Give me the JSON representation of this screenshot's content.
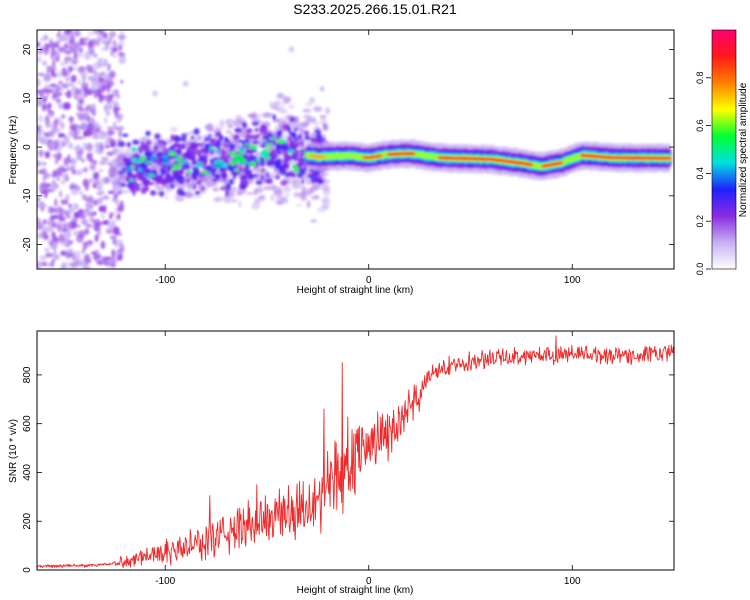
{
  "figure": {
    "title": "S233.2025.266.15.01.R21"
  },
  "chart_data": [
    {
      "type": "heatmap",
      "title": "S233.2025.266.15.01.R21",
      "xlabel": "Height of straight line (km)",
      "ylabel": "Frequency (Hz)",
      "xlim": [
        -163,
        150
      ],
      "ylim": [
        -25,
        24
      ],
      "x_ticks": [
        -100,
        0,
        100
      ],
      "x_tick_labels": [
        "-100",
        "0",
        "100"
      ],
      "y_ticks": [
        -20,
        -10,
        0,
        10,
        20
      ],
      "y_tick_labels": [
        "-20",
        "-10",
        "0",
        "10",
        "20"
      ],
      "colorbar": {
        "label": "Normalized spectral amplitude",
        "range": [
          0,
          1
        ],
        "ticks": [
          0.0,
          0.2,
          0.4,
          0.6,
          0.8
        ],
        "tick_labels": [
          "0.0",
          "0.2",
          "0.4",
          "0.6",
          "0.8"
        ],
        "colormap": [
          "#ffffff",
          "#c7b0f2",
          "#8a2be2",
          "#2020ff",
          "#00e0e0",
          "#00ff30",
          "#ffff00",
          "#ff8000",
          "#ff1a1a",
          "#ff0070"
        ]
      },
      "ridge_center_frequency_hz": [
        {
          "x": -125,
          "y": -4.5
        },
        {
          "x": -110,
          "y": -4.0
        },
        {
          "x": -95,
          "y": -3.5
        },
        {
          "x": -75,
          "y": -3.0
        },
        {
          "x": -55,
          "y": -1.5
        },
        {
          "x": -40,
          "y": -1.0
        },
        {
          "x": -25,
          "y": -2.0
        },
        {
          "x": -10,
          "y": -1.8
        },
        {
          "x": 0,
          "y": -2.2
        },
        {
          "x": 10,
          "y": -1.5
        },
        {
          "x": 20,
          "y": -1.3
        },
        {
          "x": 35,
          "y": -2.2
        },
        {
          "x": 60,
          "y": -2.5
        },
        {
          "x": 75,
          "y": -3.3
        },
        {
          "x": 85,
          "y": -4.0
        },
        {
          "x": 95,
          "y": -3.2
        },
        {
          "x": 105,
          "y": -1.7
        },
        {
          "x": 120,
          "y": -2.2
        },
        {
          "x": 148,
          "y": -2.3
        }
      ]
    },
    {
      "type": "line",
      "xlabel": "Height of straight line (km)",
      "ylabel": "SNR (10 * v/v)",
      "xlim": [
        -163,
        150
      ],
      "ylim": [
        0,
        980
      ],
      "x_ticks": [
        -100,
        0,
        100
      ],
      "x_tick_labels": [
        "-100",
        "0",
        "100"
      ],
      "y_ticks": [
        0,
        200,
        400,
        600,
        800
      ],
      "y_tick_labels": [
        "0",
        "200",
        "400",
        "600",
        "800"
      ],
      "series": [
        {
          "name": "SNR",
          "color": "#ee2a2a",
          "trend": [
            {
              "x": -163,
              "y": 15
            },
            {
              "x": -140,
              "y": 18
            },
            {
              "x": -125,
              "y": 25
            },
            {
              "x": -110,
              "y": 60
            },
            {
              "x": -90,
              "y": 90
            },
            {
              "x": -70,
              "y": 150
            },
            {
              "x": -55,
              "y": 200
            },
            {
              "x": -40,
              "y": 240
            },
            {
              "x": -30,
              "y": 280
            },
            {
              "x": -20,
              "y": 330
            },
            {
              "x": -10,
              "y": 440
            },
            {
              "x": 0,
              "y": 520
            },
            {
              "x": 10,
              "y": 570
            },
            {
              "x": 20,
              "y": 640
            },
            {
              "x": 25,
              "y": 720
            },
            {
              "x": 30,
              "y": 800
            },
            {
              "x": 40,
              "y": 840
            },
            {
              "x": 60,
              "y": 870
            },
            {
              "x": 80,
              "y": 880
            },
            {
              "x": 100,
              "y": 885
            },
            {
              "x": 130,
              "y": 880
            },
            {
              "x": 150,
              "y": 890
            }
          ],
          "spikes": [
            {
              "x": -13,
              "y": 850
            },
            {
              "x": -22,
              "y": 660
            },
            {
              "x": 92,
              "y": 960
            },
            {
              "x": -55,
              "y": 350
            },
            {
              "x": -78,
              "y": 305
            }
          ]
        }
      ]
    }
  ]
}
